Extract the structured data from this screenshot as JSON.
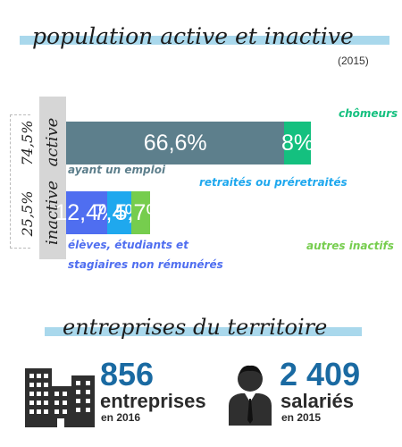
{
  "header": {
    "title": "population active et inactive",
    "year": "(2015)"
  },
  "chart_data": {
    "type": "bar",
    "rows": [
      {
        "name": "active",
        "share": "74,5%",
        "segments": [
          {
            "label": "ayant un emploi",
            "display": "66,6%",
            "value": 66.6,
            "color": "#5d7f8c",
            "label_color": "#5d7f8c"
          },
          {
            "label": "chômeurs",
            "display": "8%",
            "value": 8.0,
            "color": "#14c07f",
            "label_color": "#14c07f"
          }
        ]
      },
      {
        "name": "inactive",
        "share": "25,5%",
        "segments": [
          {
            "label": "élèves, étudiants et stagiaires non rémunérés",
            "display": "12,4%",
            "value": 12.4,
            "color": "#4f6ef0",
            "label_color": "#4f6ef0"
          },
          {
            "label": "retraités ou préretraités",
            "display": "7,4%",
            "value": 7.4,
            "color": "#1fa8ee",
            "label_color": "#1fa8ee"
          },
          {
            "label": "autres inactifs",
            "display": "5,7%",
            "value": 5.7,
            "color": "#76cd4e",
            "label_color": "#76cd4e"
          }
        ]
      }
    ]
  },
  "section2": {
    "title": "entreprises du territoire",
    "companies": {
      "number": "856",
      "label": "entreprises",
      "sub": "en 2016",
      "icon": "buildings-icon"
    },
    "employees": {
      "number": "2 409",
      "label": "salariés",
      "sub": "en 2015",
      "icon": "employee-icon"
    }
  },
  "colors": {
    "highlight": "#a9d8ec",
    "number_blue": "#1a6aa2",
    "side_bar": "#d6d6d6"
  }
}
